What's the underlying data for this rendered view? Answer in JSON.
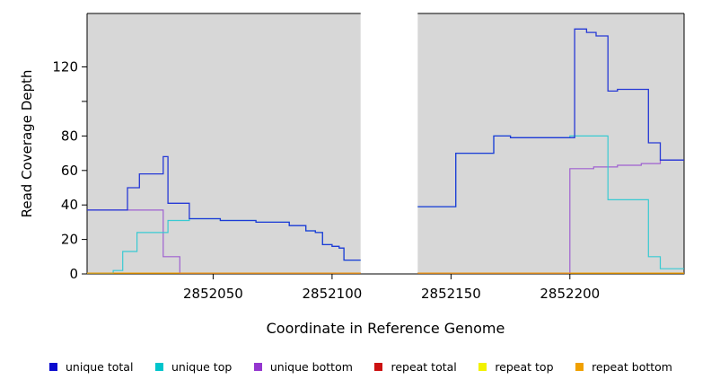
{
  "axes": {
    "ylabel": "Read Coverage Depth",
    "xlabel": "Coordinate in Reference Genome"
  },
  "chart_data": {
    "type": "line",
    "step": true,
    "title": "",
    "xlabel": "Coordinate in Reference Genome",
    "ylabel": "Read Coverage Depth",
    "panel_bg": "#D7D7D7",
    "x_range": [
      2851997,
      2852248
    ],
    "y_range": [
      0,
      151
    ],
    "gap_region": [
      2852112,
      2852136
    ],
    "x_ticks": [
      {
        "value": 2852050,
        "label": "2852050"
      },
      {
        "value": 2852100,
        "label": "2852100"
      },
      {
        "value": 2852150,
        "label": "2852150"
      },
      {
        "value": 2852200,
        "label": "2852200"
      }
    ],
    "y_ticks": [
      {
        "value": 0,
        "label": "0"
      },
      {
        "value": 20,
        "label": "20"
      },
      {
        "value": 40,
        "label": "40"
      },
      {
        "value": 60,
        "label": "60"
      },
      {
        "value": 80,
        "label": "80"
      },
      {
        "value": 100,
        "label": ""
      },
      {
        "value": 120,
        "label": "120"
      }
    ],
    "series": [
      {
        "id": "repeat-total",
        "label": "repeat total",
        "color": "#CC1111",
        "width": 1.1,
        "segments": [
          {
            "points": [
              [
                2851997,
                0
              ]
            ],
            "end": 2852112
          },
          {
            "points": [
              [
                2852136,
                0
              ]
            ],
            "end": 2852248
          }
        ]
      },
      {
        "id": "repeat-top",
        "label": "repeat top",
        "color": "#F2F200",
        "width": 1.1,
        "segments": [
          {
            "points": [
              [
                2851997,
                0
              ]
            ],
            "end": 2852112
          },
          {
            "points": [
              [
                2852136,
                0
              ]
            ],
            "end": 2852248
          }
        ]
      },
      {
        "id": "unique-bottom",
        "label": "unique bottom",
        "color": "#9C5BD0",
        "width": 1.2,
        "segments": [
          {
            "points": [
              [
                2851997,
                37
              ],
              [
                2852029,
                10
              ],
              [
                2852036,
                0
              ]
            ],
            "end": 2852112
          },
          {
            "points": [
              [
                2852136,
                0
              ],
              [
                2852200,
                61
              ],
              [
                2852210,
                62
              ],
              [
                2852220,
                63
              ],
              [
                2852230,
                64
              ],
              [
                2852238,
                66
              ]
            ],
            "end": 2852248
          }
        ]
      },
      {
        "id": "unique-top",
        "label": "unique top",
        "color": "#2FC9D2",
        "width": 1.2,
        "segments": [
          {
            "points": [
              [
                2851997,
                0
              ],
              [
                2852008,
                2
              ],
              [
                2852012,
                13
              ],
              [
                2852018,
                24
              ],
              [
                2852031,
                31
              ],
              [
                2852040,
                32
              ],
              [
                2852053,
                31
              ],
              [
                2852068,
                30
              ],
              [
                2852082,
                28
              ],
              [
                2852089,
                25
              ],
              [
                2852093,
                24
              ],
              [
                2852096,
                17
              ],
              [
                2852100,
                16
              ],
              [
                2852103,
                15
              ],
              [
                2852105,
                8
              ]
            ],
            "end": 2852112
          },
          {
            "points": [
              [
                2852136,
                39
              ],
              [
                2852152,
                70
              ],
              [
                2852168,
                80
              ],
              [
                2852175,
                79
              ],
              [
                2852200,
                80
              ],
              [
                2852216,
                43
              ],
              [
                2852233,
                10
              ],
              [
                2852238,
                3
              ]
            ],
            "end": 2852248
          }
        ]
      },
      {
        "id": "unique-total",
        "label": "unique total",
        "color": "#1C30D6",
        "width": 1.3,
        "segments": [
          {
            "points": [
              [
                2851997,
                37
              ],
              [
                2852014,
                50
              ],
              [
                2852019,
                58
              ],
              [
                2852029,
                68
              ],
              [
                2852031,
                41
              ],
              [
                2852040,
                32
              ],
              [
                2852053,
                31
              ],
              [
                2852068,
                30
              ],
              [
                2852082,
                28
              ],
              [
                2852089,
                25
              ],
              [
                2852093,
                24
              ],
              [
                2852096,
                17
              ],
              [
                2852100,
                16
              ],
              [
                2852103,
                15
              ],
              [
                2852105,
                8
              ]
            ],
            "end": 2852112
          },
          {
            "points": [
              [
                2852136,
                39
              ],
              [
                2852152,
                70
              ],
              [
                2852168,
                80
              ],
              [
                2852175,
                79
              ],
              [
                2852202,
                142
              ],
              [
                2852207,
                140
              ],
              [
                2852211,
                138
              ],
              [
                2852216,
                106
              ],
              [
                2852220,
                107
              ],
              [
                2852233,
                76
              ],
              [
                2852238,
                66
              ]
            ],
            "end": 2852248
          }
        ]
      },
      {
        "id": "repeat-bottom",
        "label": "repeat bottom",
        "color": "#F09800",
        "width": 1.2,
        "segments": [
          {
            "points": [
              [
                2851997,
                0
              ]
            ],
            "end": 2852112
          },
          {
            "points": [
              [
                2852136,
                0
              ]
            ],
            "end": 2852248
          }
        ]
      }
    ],
    "legend": [
      {
        "label": "unique total",
        "color": "#0B0BCF"
      },
      {
        "label": "unique top",
        "color": "#00C5CC"
      },
      {
        "label": "unique bottom",
        "color": "#9436CF"
      },
      {
        "label": "repeat total",
        "color": "#CC1111"
      },
      {
        "label": "repeat top",
        "color": "#F2F200"
      },
      {
        "label": "repeat bottom",
        "color": "#F0A000"
      }
    ]
  }
}
